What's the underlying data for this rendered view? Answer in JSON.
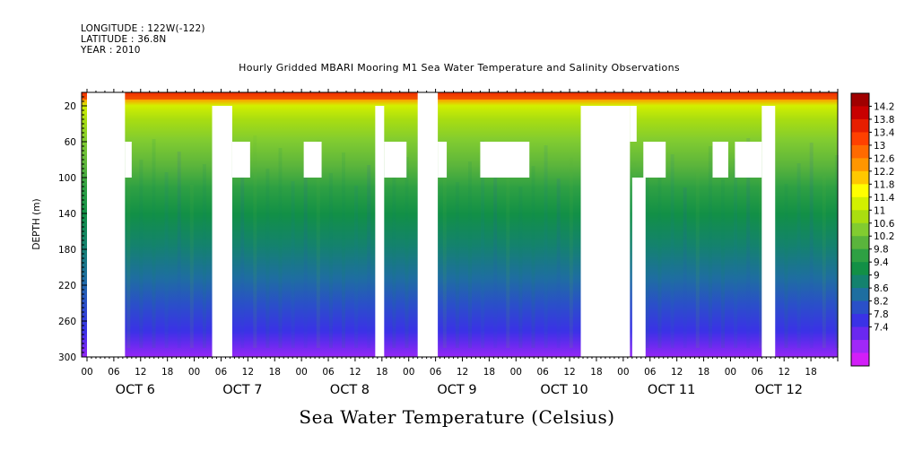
{
  "header": {
    "longitude": "LONGITUDE : 122W(-122)",
    "latitude": "LATITUDE : 36.8N",
    "year": "YEAR : 2010"
  },
  "title": "Hourly Gridded MBARI Mooring M1 Sea Water Temperature and Salinity Observations",
  "bottom_title": "Sea Water Temperature (Celsius)",
  "chart_data": {
    "type": "heatmap",
    "title": "Hourly Gridded MBARI Mooring M1 Sea Water Temperature and Salinity Observations",
    "ylabel": "DEPTH (m)",
    "xlabel": "",
    "ylim": [
      300,
      0
    ],
    "y_ticks": [
      20,
      60,
      100,
      140,
      180,
      220,
      260,
      300
    ],
    "x_hour_ticks": [
      "00",
      "06",
      "12",
      "18"
    ],
    "x_day_labels": [
      "OCT  6",
      "OCT  7",
      "OCT  8",
      "OCT  9",
      "OCT 10",
      "OCT 11",
      "OCT 12"
    ],
    "colorbar_label": "Sea Water Temperature (Celsius)",
    "colorbar_levels": [
      "14.2",
      "13.8",
      "13.4",
      "13",
      "12.6",
      "12.2",
      "11.8",
      "11.4",
      "11",
      "10.6",
      "10.2",
      "9.8",
      "9.4",
      "9",
      "8.6",
      "8.2",
      "7.8",
      "7.4"
    ],
    "colorbar_colors": [
      "#a00000",
      "#c80000",
      "#e61e00",
      "#ff4000",
      "#ff6a00",
      "#ff9600",
      "#ffc800",
      "#ffff00",
      "#d2f000",
      "#aade10",
      "#82cc30",
      "#5ab43c",
      "#2ea043",
      "#129046",
      "#14826e",
      "#1e6ea0",
      "#2a50c8",
      "#3a32e6",
      "#6a28f0",
      "#a028f8",
      "#d21ef8"
    ],
    "depth_temperature_profile": [
      {
        "depth": 10,
        "temperature": 13.0
      },
      {
        "depth": 20,
        "temperature": 12.2
      },
      {
        "depth": 40,
        "temperature": 11.2
      },
      {
        "depth": 60,
        "temperature": 10.5
      },
      {
        "depth": 80,
        "temperature": 10.1
      },
      {
        "depth": 100,
        "temperature": 9.9
      },
      {
        "depth": 140,
        "temperature": 9.5
      },
      {
        "depth": 180,
        "temperature": 9.0
      },
      {
        "depth": 220,
        "temperature": 8.6
      },
      {
        "depth": 260,
        "temperature": 8.2
      },
      {
        "depth": 300,
        "temperature": 7.8
      }
    ]
  }
}
